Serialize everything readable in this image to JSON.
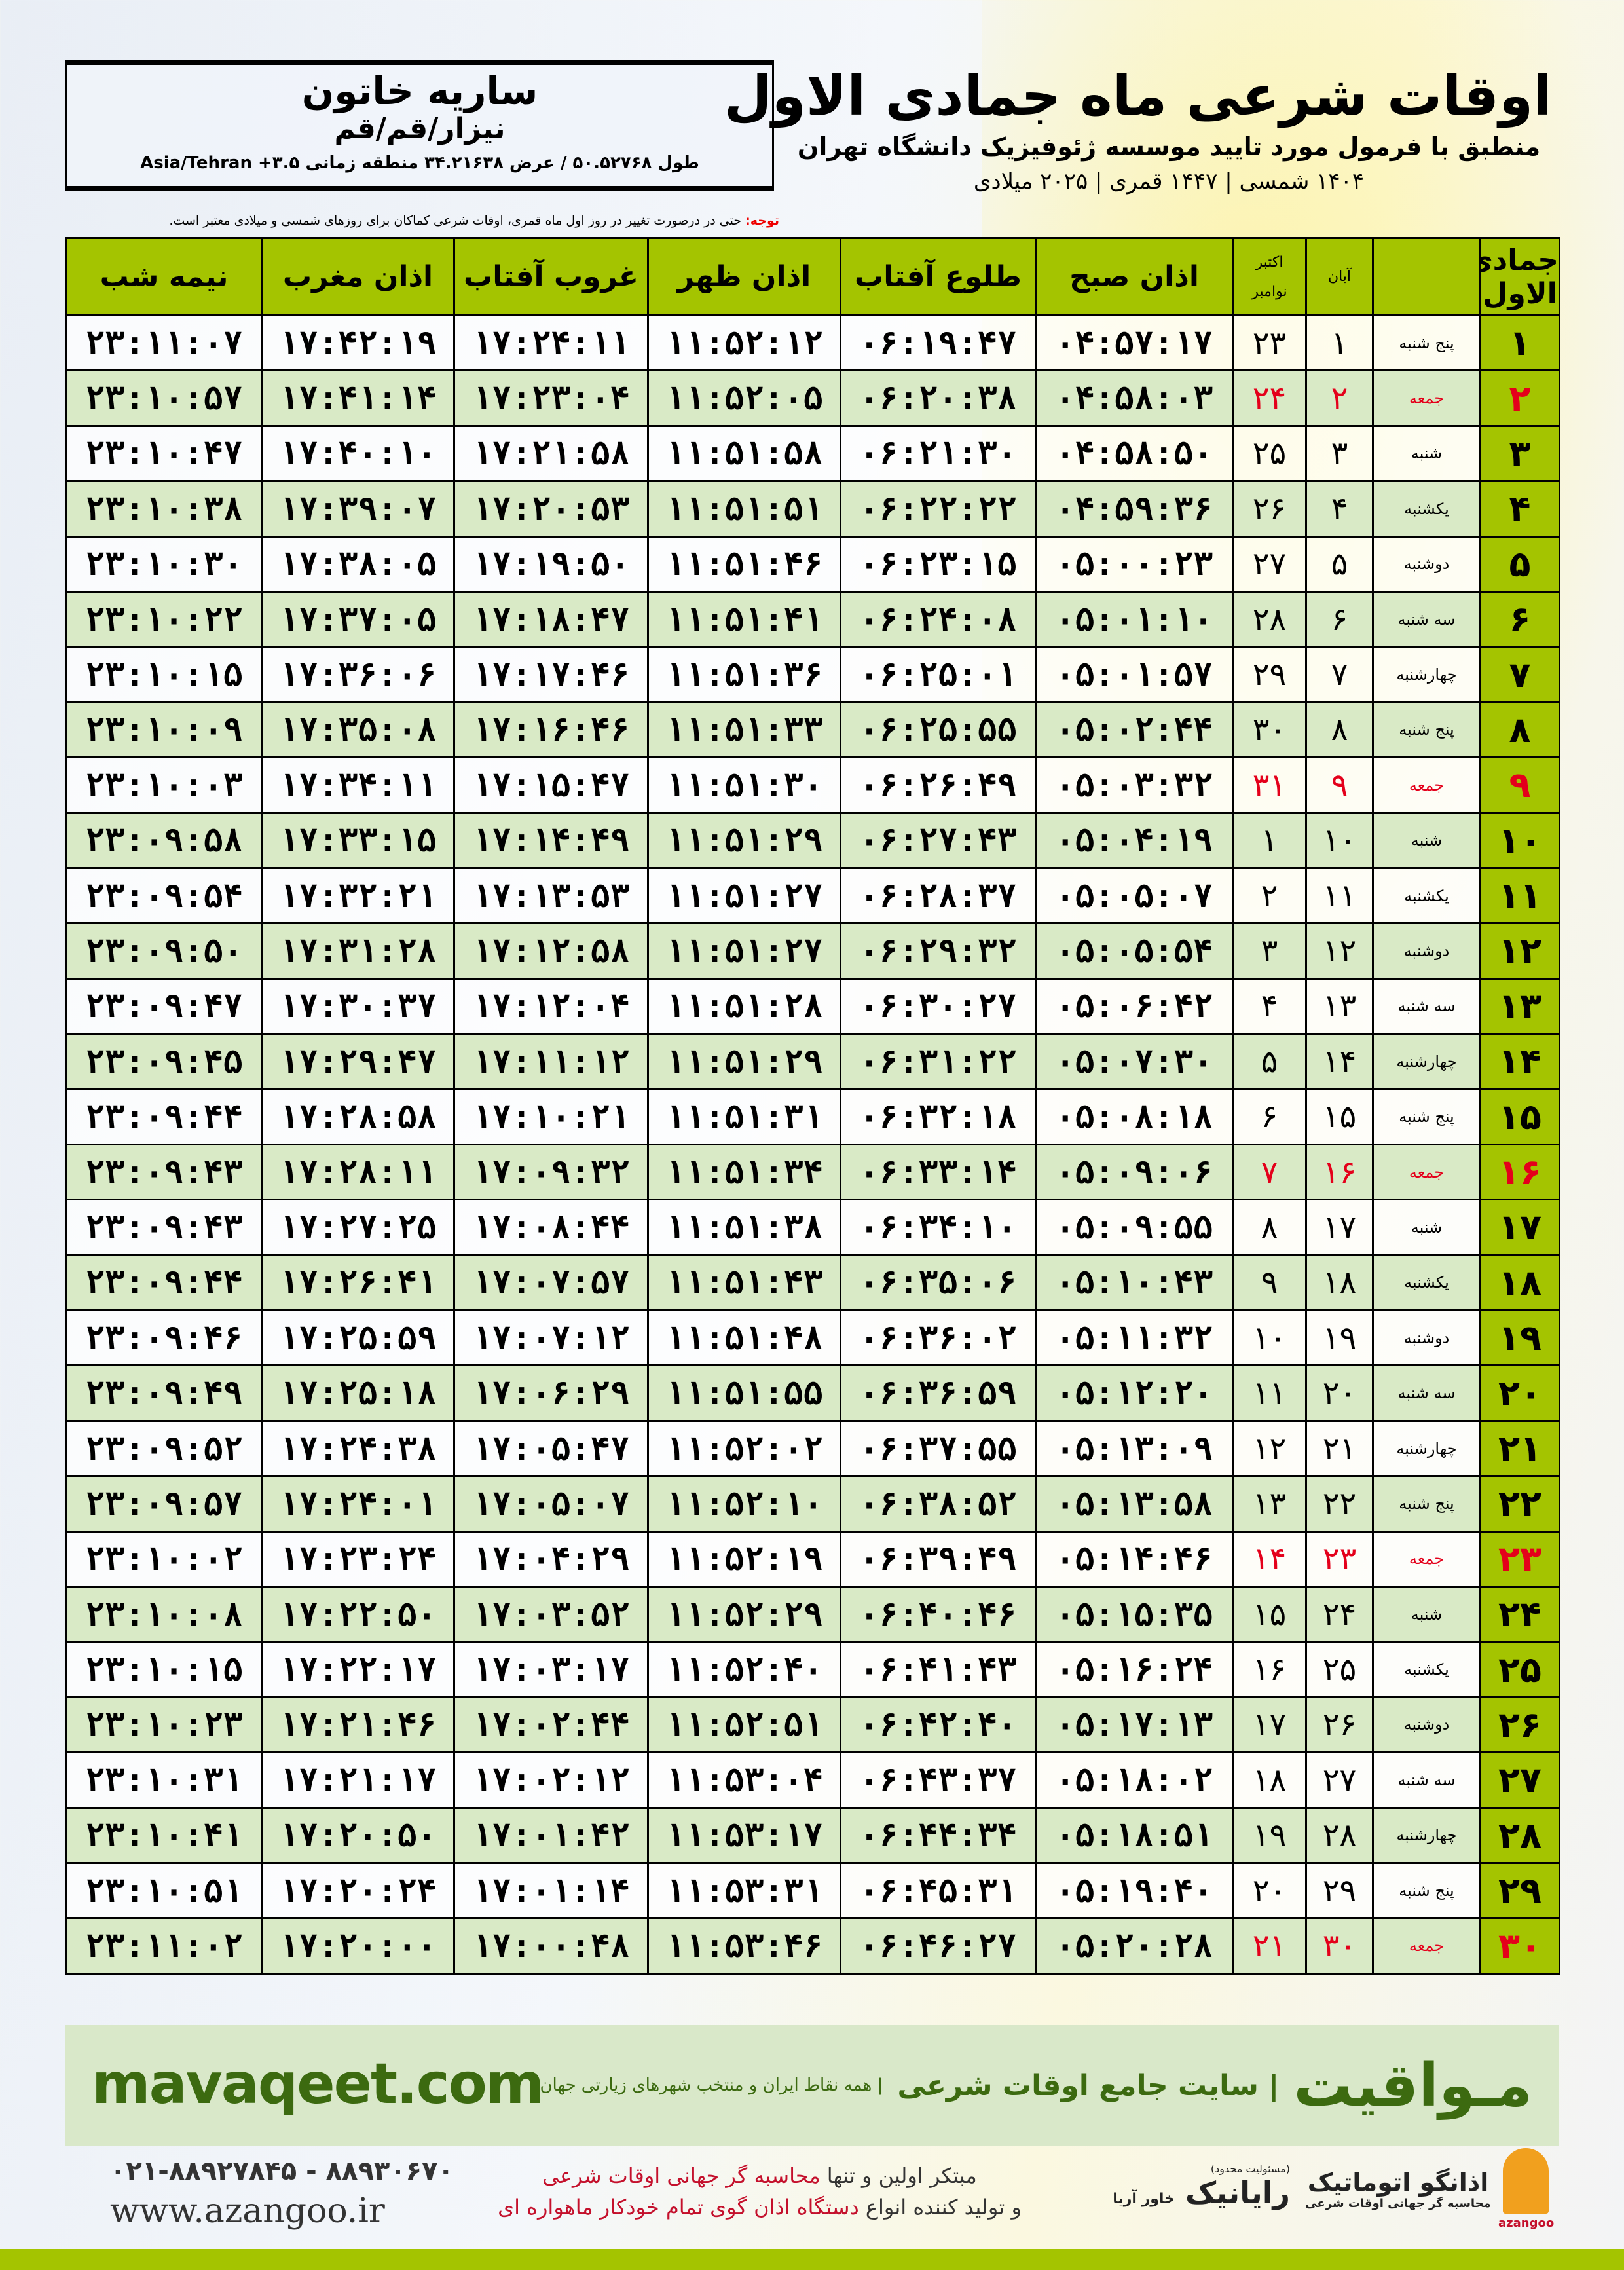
{
  "header": {
    "title": "اوقات شرعی ماه جمادی الاول",
    "subtitle": "منطبق با فرمول مورد تایید موسسه ژئوفیزیک دانشگاه تهران",
    "years": "۱۴۰۴ شمسی | ۱۴۴۷ قمری | ۲۰۲۵ میلادی"
  },
  "location": {
    "name": "ساریه خاتون",
    "place": "نیزار/قم/قم",
    "coords": "طول ۵۰.۵۲۷۶۸ / عرض ۳۴.۲۱۶۳۸ منطقه زمانی ۳.۵+ Asia/Tehran"
  },
  "note": {
    "label": "توجه:",
    "text": " حتی در درصورت تغییر در روز اول ماه قمری، اوقات شرعی کماکان برای روزهای شمسی و میلادی معتبر است."
  },
  "table": {
    "headers": {
      "day": "جمادی الاول",
      "aban": "آبان",
      "greg1": "اکتبر",
      "greg2": "نوامبر",
      "sobh": "اذان صبح",
      "tolu": "طلوع آفتاب",
      "zohr": "اذان ظهر",
      "ghurub": "غروب آفتاب",
      "maghrib": "اذان مغرب",
      "nime": "نیمه شب"
    },
    "holiday_color": "#e4001b",
    "header_color": "#a4c400",
    "rows": [
      [
        "۱",
        "پنج شنبه",
        "۱",
        "۲۳",
        "۰۴:۵۷:۱۷",
        "۰۶:۱۹:۴۷",
        "۱۱:۵۲:۱۲",
        "۱۷:۲۴:۱۱",
        "۱۷:۴۲:۱۹",
        "۲۳:۱۱:۰۷",
        false
      ],
      [
        "۲",
        "جمعه",
        "۲",
        "۲۴",
        "۰۴:۵۸:۰۳",
        "۰۶:۲۰:۳۸",
        "۱۱:۵۲:۰۵",
        "۱۷:۲۳:۰۴",
        "۱۷:۴۱:۱۴",
        "۲۳:۱۰:۵۷",
        true
      ],
      [
        "۳",
        "شنبه",
        "۳",
        "۲۵",
        "۰۴:۵۸:۵۰",
        "۰۶:۲۱:۳۰",
        "۱۱:۵۱:۵۸",
        "۱۷:۲۱:۵۸",
        "۱۷:۴۰:۱۰",
        "۲۳:۱۰:۴۷",
        false
      ],
      [
        "۴",
        "یکشنبه",
        "۴",
        "۲۶",
        "۰۴:۵۹:۳۶",
        "۰۶:۲۲:۲۲",
        "۱۱:۵۱:۵۱",
        "۱۷:۲۰:۵۳",
        "۱۷:۳۹:۰۷",
        "۲۳:۱۰:۳۸",
        false
      ],
      [
        "۵",
        "دوشنبه",
        "۵",
        "۲۷",
        "۰۵:۰۰:۲۳",
        "۰۶:۲۳:۱۵",
        "۱۱:۵۱:۴۶",
        "۱۷:۱۹:۵۰",
        "۱۷:۳۸:۰۵",
        "۲۳:۱۰:۳۰",
        false
      ],
      [
        "۶",
        "سه شنبه",
        "۶",
        "۲۸",
        "۰۵:۰۱:۱۰",
        "۰۶:۲۴:۰۸",
        "۱۱:۵۱:۴۱",
        "۱۷:۱۸:۴۷",
        "۱۷:۳۷:۰۵",
        "۲۳:۱۰:۲۲",
        false
      ],
      [
        "۷",
        "چهارشنبه",
        "۷",
        "۲۹",
        "۰۵:۰۱:۵۷",
        "۰۶:۲۵:۰۱",
        "۱۱:۵۱:۳۶",
        "۱۷:۱۷:۴۶",
        "۱۷:۳۶:۰۶",
        "۲۳:۱۰:۱۵",
        false
      ],
      [
        "۸",
        "پنج شنبه",
        "۸",
        "۳۰",
        "۰۵:۰۲:۴۴",
        "۰۶:۲۵:۵۵",
        "۱۱:۵۱:۳۳",
        "۱۷:۱۶:۴۶",
        "۱۷:۳۵:۰۸",
        "۲۳:۱۰:۰۹",
        false
      ],
      [
        "۹",
        "جمعه",
        "۹",
        "۳۱",
        "۰۵:۰۳:۳۲",
        "۰۶:۲۶:۴۹",
        "۱۱:۵۱:۳۰",
        "۱۷:۱۵:۴۷",
        "۱۷:۳۴:۱۱",
        "۲۳:۱۰:۰۳",
        true
      ],
      [
        "۱۰",
        "شنبه",
        "۱۰",
        "۱",
        "۰۵:۰۴:۱۹",
        "۰۶:۲۷:۴۳",
        "۱۱:۵۱:۲۹",
        "۱۷:۱۴:۴۹",
        "۱۷:۳۳:۱۵",
        "۲۳:۰۹:۵۸",
        false
      ],
      [
        "۱۱",
        "یکشنبه",
        "۱۱",
        "۲",
        "۰۵:۰۵:۰۷",
        "۰۶:۲۸:۳۷",
        "۱۱:۵۱:۲۷",
        "۱۷:۱۳:۵۳",
        "۱۷:۳۲:۲۱",
        "۲۳:۰۹:۵۴",
        false
      ],
      [
        "۱۲",
        "دوشنبه",
        "۱۲",
        "۳",
        "۰۵:۰۵:۵۴",
        "۰۶:۲۹:۳۲",
        "۱۱:۵۱:۲۷",
        "۱۷:۱۲:۵۸",
        "۱۷:۳۱:۲۸",
        "۲۳:۰۹:۵۰",
        false
      ],
      [
        "۱۳",
        "سه شنبه",
        "۱۳",
        "۴",
        "۰۵:۰۶:۴۲",
        "۰۶:۳۰:۲۷",
        "۱۱:۵۱:۲۸",
        "۱۷:۱۲:۰۴",
        "۱۷:۳۰:۳۷",
        "۲۳:۰۹:۴۷",
        false
      ],
      [
        "۱۴",
        "چهارشنبه",
        "۱۴",
        "۵",
        "۰۵:۰۷:۳۰",
        "۰۶:۳۱:۲۲",
        "۱۱:۵۱:۲۹",
        "۱۷:۱۱:۱۲",
        "۱۷:۲۹:۴۷",
        "۲۳:۰۹:۴۵",
        false
      ],
      [
        "۱۵",
        "پنج شنبه",
        "۱۵",
        "۶",
        "۰۵:۰۸:۱۸",
        "۰۶:۳۲:۱۸",
        "۱۱:۵۱:۳۱",
        "۱۷:۱۰:۲۱",
        "۱۷:۲۸:۵۸",
        "۲۳:۰۹:۴۴",
        false
      ],
      [
        "۱۶",
        "جمعه",
        "۱۶",
        "۷",
        "۰۵:۰۹:۰۶",
        "۰۶:۳۳:۱۴",
        "۱۱:۵۱:۳۴",
        "۱۷:۰۹:۳۲",
        "۱۷:۲۸:۱۱",
        "۲۳:۰۹:۴۳",
        true
      ],
      [
        "۱۷",
        "شنبه",
        "۱۷",
        "۸",
        "۰۵:۰۹:۵۵",
        "۰۶:۳۴:۱۰",
        "۱۱:۵۱:۳۸",
        "۱۷:۰۸:۴۴",
        "۱۷:۲۷:۲۵",
        "۲۳:۰۹:۴۳",
        false
      ],
      [
        "۱۸",
        "یکشنبه",
        "۱۸",
        "۹",
        "۰۵:۱۰:۴۳",
        "۰۶:۳۵:۰۶",
        "۱۱:۵۱:۴۳",
        "۱۷:۰۷:۵۷",
        "۱۷:۲۶:۴۱",
        "۲۳:۰۹:۴۴",
        false
      ],
      [
        "۱۹",
        "دوشنبه",
        "۱۹",
        "۱۰",
        "۰۵:۱۱:۳۲",
        "۰۶:۳۶:۰۲",
        "۱۱:۵۱:۴۸",
        "۱۷:۰۷:۱۲",
        "۱۷:۲۵:۵۹",
        "۲۳:۰۹:۴۶",
        false
      ],
      [
        "۲۰",
        "سه شنبه",
        "۲۰",
        "۱۱",
        "۰۵:۱۲:۲۰",
        "۰۶:۳۶:۵۹",
        "۱۱:۵۱:۵۵",
        "۱۷:۰۶:۲۹",
        "۱۷:۲۵:۱۸",
        "۲۳:۰۹:۴۹",
        false
      ],
      [
        "۲۱",
        "چهارشنبه",
        "۲۱",
        "۱۲",
        "۰۵:۱۳:۰۹",
        "۰۶:۳۷:۵۵",
        "۱۱:۵۲:۰۲",
        "۱۷:۰۵:۴۷",
        "۱۷:۲۴:۳۸",
        "۲۳:۰۹:۵۲",
        false
      ],
      [
        "۲۲",
        "پنج شنبه",
        "۲۲",
        "۱۳",
        "۰۵:۱۳:۵۸",
        "۰۶:۳۸:۵۲",
        "۱۱:۵۲:۱۰",
        "۱۷:۰۵:۰۷",
        "۱۷:۲۴:۰۱",
        "۲۳:۰۹:۵۷",
        false
      ],
      [
        "۲۳",
        "جمعه",
        "۲۳",
        "۱۴",
        "۰۵:۱۴:۴۶",
        "۰۶:۳۹:۴۹",
        "۱۱:۵۲:۱۹",
        "۱۷:۰۴:۲۹",
        "۱۷:۲۳:۲۴",
        "۲۳:۱۰:۰۲",
        true
      ],
      [
        "۲۴",
        "شنبه",
        "۲۴",
        "۱۵",
        "۰۵:۱۵:۳۵",
        "۰۶:۴۰:۴۶",
        "۱۱:۵۲:۲۹",
        "۱۷:۰۳:۵۲",
        "۱۷:۲۲:۵۰",
        "۲۳:۱۰:۰۸",
        false
      ],
      [
        "۲۵",
        "یکشنبه",
        "۲۵",
        "۱۶",
        "۰۵:۱۶:۲۴",
        "۰۶:۴۱:۴۳",
        "۱۱:۵۲:۴۰",
        "۱۷:۰۳:۱۷",
        "۱۷:۲۲:۱۷",
        "۲۳:۱۰:۱۵",
        false
      ],
      [
        "۲۶",
        "دوشنبه",
        "۲۶",
        "۱۷",
        "۰۵:۱۷:۱۳",
        "۰۶:۴۲:۴۰",
        "۱۱:۵۲:۵۱",
        "۱۷:۰۲:۴۴",
        "۱۷:۲۱:۴۶",
        "۲۳:۱۰:۲۳",
        false
      ],
      [
        "۲۷",
        "سه شنبه",
        "۲۷",
        "۱۸",
        "۰۵:۱۸:۰۲",
        "۰۶:۴۳:۳۷",
        "۱۱:۵۳:۰۴",
        "۱۷:۰۲:۱۲",
        "۱۷:۲۱:۱۷",
        "۲۳:۱۰:۳۱",
        false
      ],
      [
        "۲۸",
        "چهارشنبه",
        "۲۸",
        "۱۹",
        "۰۵:۱۸:۵۱",
        "۰۶:۴۴:۳۴",
        "۱۱:۵۳:۱۷",
        "۱۷:۰۱:۴۲",
        "۱۷:۲۰:۵۰",
        "۲۳:۱۰:۴۱",
        false
      ],
      [
        "۲۹",
        "پنج شنبه",
        "۲۹",
        "۲۰",
        "۰۵:۱۹:۴۰",
        "۰۶:۴۵:۳۱",
        "۱۱:۵۳:۳۱",
        "۱۷:۰۱:۱۴",
        "۱۷:۲۰:۲۴",
        "۲۳:۱۰:۵۱",
        false
      ],
      [
        "۳۰",
        "جمعه",
        "۳۰",
        "۲۱",
        "۰۵:۲۰:۲۸",
        "۰۶:۴۶:۲۷",
        "۱۱:۵۳:۴۶",
        "۱۷:۰۰:۴۸",
        "۱۷:۲۰:۰۰",
        "۲۳:۱۱:۰۲",
        true
      ]
    ]
  },
  "banner": {
    "brand": "مـواقیت",
    "slogan": "| سایت جامع اوقات شرعی",
    "sub": "| همه نقاط ایران و منتخب شهرهای زیارتی جهان",
    "url": "mavaqeet.com"
  },
  "footer": {
    "phone": "۰۲۱-۸۸۹۲۷۸۴۵ - ۸۸۹۳۰۶۷۰",
    "web": "www.azangoo.ir",
    "promo1a": "مبتکر اولین و تنها ",
    "promo1b": "محاسبه گر جهانی اوقات شرعی",
    "promo2a": "و تولید کننده انواع ",
    "promo2b": "دستگاه اذان گوی تمام خودکار ماهواره ای",
    "logo_rayanik": "رایانیک",
    "logo_rayanik_sub": "خاور آریا",
    "logo_rayanik_top": "(مسئولیت محدود)",
    "logo_azangoo": "اذانگو اتوماتیک",
    "logo_azangoo_sub": "محاسبه گر جهانی اوقات شرعی",
    "logo_azangoo_en": "azangoo"
  }
}
